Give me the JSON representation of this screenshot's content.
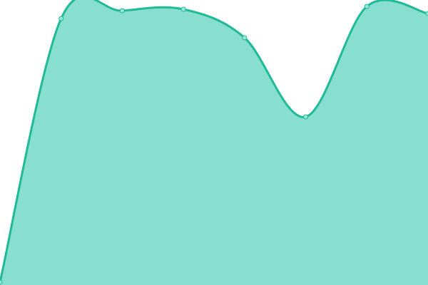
{
  "chart_data": {
    "type": "area",
    "x": [
      0,
      1,
      2,
      3,
      4,
      5,
      6,
      7
    ],
    "values": [
      1,
      93.5,
      96.25,
      96.75,
      86.75,
      59,
      97.75,
      95.25
    ],
    "ylim": [
      0,
      100
    ],
    "grid": false,
    "smooth": true,
    "colors": {
      "line": "#1fba96",
      "fill": "#89dfcf",
      "point_fill": "#9fe6d8"
    }
  }
}
